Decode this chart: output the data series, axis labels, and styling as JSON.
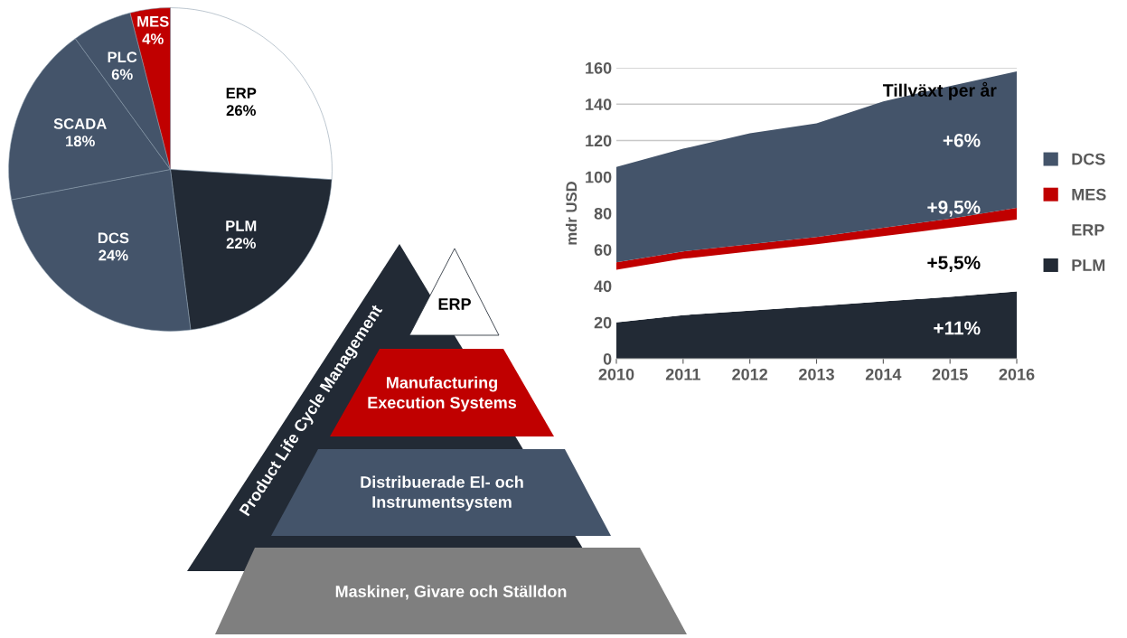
{
  "chart_data": [
    {
      "type": "pie",
      "categories": [
        "ERP",
        "PLM",
        "DCS",
        "SCADA",
        "PLC",
        "MES"
      ],
      "values": [
        26,
        22,
        24,
        18,
        6,
        4
      ],
      "colors": [
        "#ffffff",
        "#222a35",
        "#44546a",
        "#44546a",
        "#44546a",
        "#c00000"
      ],
      "value_labels": [
        "26%",
        "22%",
        "24%",
        "18%",
        "6%",
        "4%"
      ]
    },
    {
      "type": "area",
      "stacked": true,
      "categories": [
        "2010",
        "2011",
        "2012",
        "2013",
        "2014",
        "2015",
        "2016"
      ],
      "ylabel": "mdr USD",
      "ylim": [
        0,
        160
      ],
      "yticks": [
        0,
        20,
        40,
        60,
        80,
        100,
        120,
        140,
        160
      ],
      "grid": "y",
      "legend": "right",
      "series": [
        {
          "name": "PLM",
          "color": "#222a35",
          "values": [
            20,
            24,
            26.5,
            29,
            31.5,
            34,
            37
          ]
        },
        {
          "name": "ERP",
          "color": "#ffffff",
          "values": [
            29,
            31,
            32.5,
            34,
            36,
            38,
            39.5
          ]
        },
        {
          "name": "MES",
          "color": "#c00000",
          "values": [
            4,
            4,
            4,
            4,
            4.5,
            5,
            6.5
          ]
        },
        {
          "name": "DCS",
          "color": "#44546a",
          "values": [
            52.5,
            56.5,
            61,
            62.5,
            69.5,
            73,
            75
          ]
        }
      ],
      "annotations": [
        "Tillväxt per år",
        "+6%",
        "+9,5%",
        "+5,5%",
        "+11%"
      ]
    },
    {
      "type": "other",
      "annotations": [
        "Product Life Cycle Management",
        "ERP",
        "Manufacturing\nExecution Systems",
        "Distribuerade El- och\nInstrumentsystem",
        "Maskiner, Givare och Ställdon"
      ]
    }
  ]
}
